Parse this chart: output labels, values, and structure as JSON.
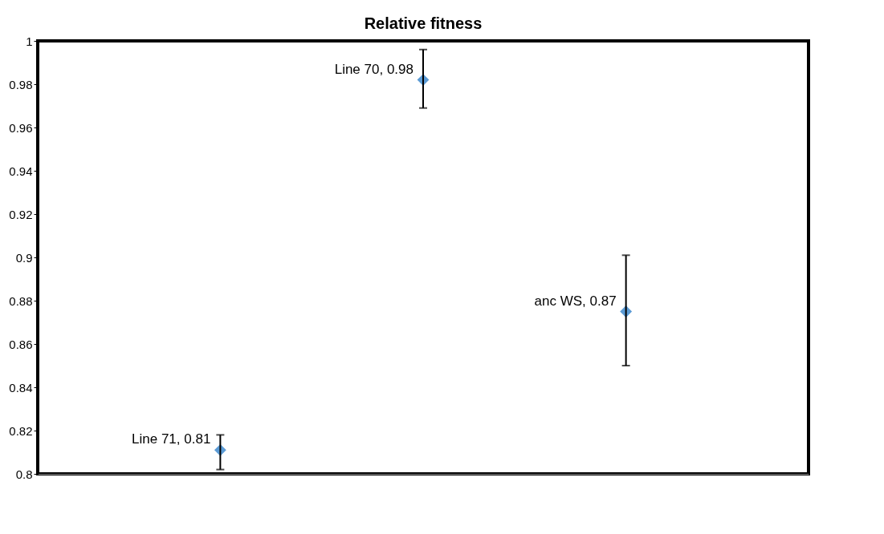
{
  "chart_data": {
    "type": "scatter",
    "title": "Relative fitness",
    "categories": [
      null,
      null,
      null
    ],
    "series": [
      {
        "color": "#5b9bd5",
        "values": [
          0.811,
          0.982,
          0.875
        ],
        "errors": [
          [
            0.802,
            0.818
          ],
          [
            0.969,
            0.996
          ],
          [
            0.85,
            0.901
          ]
        ],
        "value_labels": [
          "Line 71, 0.81",
          "Line 70, 0.98",
          "anc WS, 0.87"
        ]
      }
    ],
    "ylim": [
      0.8,
      1
    ],
    "yticks": [
      0.8,
      0.82,
      0.84,
      0.86,
      0.88,
      0.9,
      0.92,
      0.94,
      0.96,
      0.98,
      1
    ],
    "tick_labels": "y",
    "grid": false,
    "marker": "diamond"
  }
}
